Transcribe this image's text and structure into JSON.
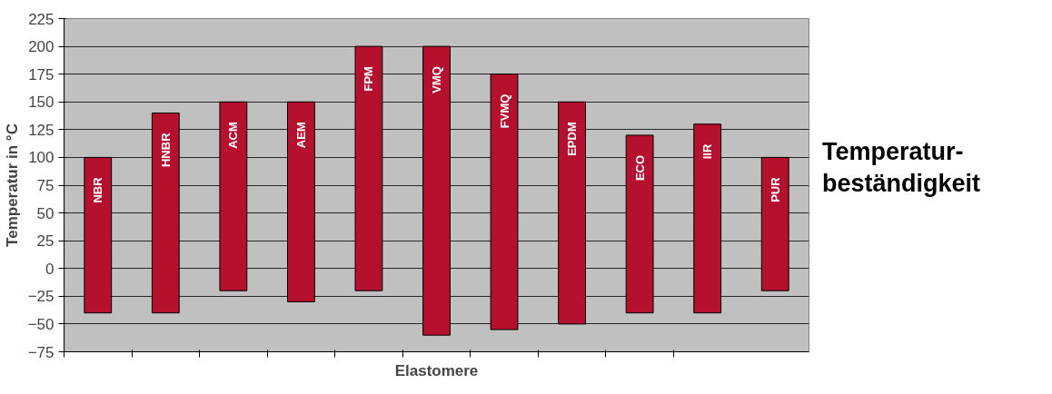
{
  "chart_data": {
    "type": "bar",
    "title": "Temperatur-\nbeständigkeit",
    "xlabel": "Elastomere",
    "ylabel": "Temperatur in °C",
    "categories": [
      "NBR",
      "HNBR",
      "ACM",
      "AEM",
      "FPM",
      "VMQ",
      "FVMQ",
      "EPDM",
      "ECO",
      "IIR",
      "PUR"
    ],
    "base": [
      -40,
      -40,
      -20,
      -30,
      -20,
      -60,
      -55,
      -50,
      -40,
      -40,
      -20
    ],
    "values": [
      140,
      180,
      170,
      180,
      220,
      260,
      230,
      200,
      160,
      170,
      120
    ],
    "color": "#b5102e",
    "ylim": [
      -75,
      225
    ],
    "yticks": [
      -75,
      -50,
      -25,
      0,
      25,
      50,
      75,
      100,
      125,
      150,
      175,
      200,
      225
    ],
    "grid": "y"
  }
}
